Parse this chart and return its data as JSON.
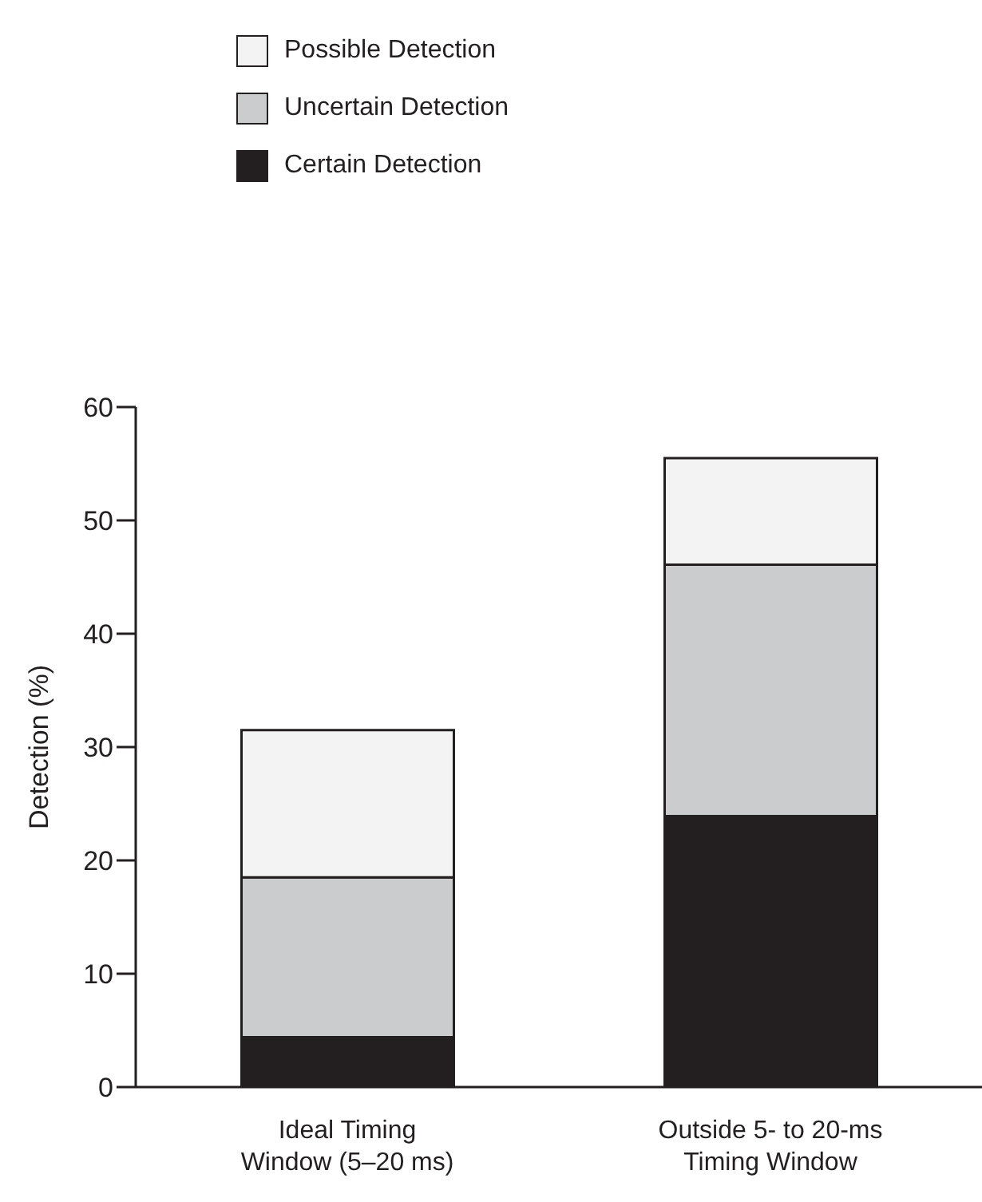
{
  "chart_data": {
    "type": "bar",
    "stacked": true,
    "ylabel": "Detection (%)",
    "categories": [
      "Ideal Timing\nWindow (5–20 ms)",
      "Outside 5- to 20-ms\nTiming Window"
    ],
    "series": [
      {
        "name": "Certain Detection",
        "color": "#231f20",
        "values": [
          4.4,
          23.9
        ]
      },
      {
        "name": "Uncertain Detection",
        "color": "#cbcccd",
        "values": [
          14.1,
          22.2
        ]
      },
      {
        "name": "Possible Detection",
        "color": "#f3f3f3",
        "values": [
          13.0,
          9.4
        ]
      }
    ],
    "ylim": [
      0,
      60
    ],
    "yticks": [
      0,
      10,
      20,
      30,
      40,
      50,
      60
    ],
    "grid": false,
    "legend": "top"
  }
}
